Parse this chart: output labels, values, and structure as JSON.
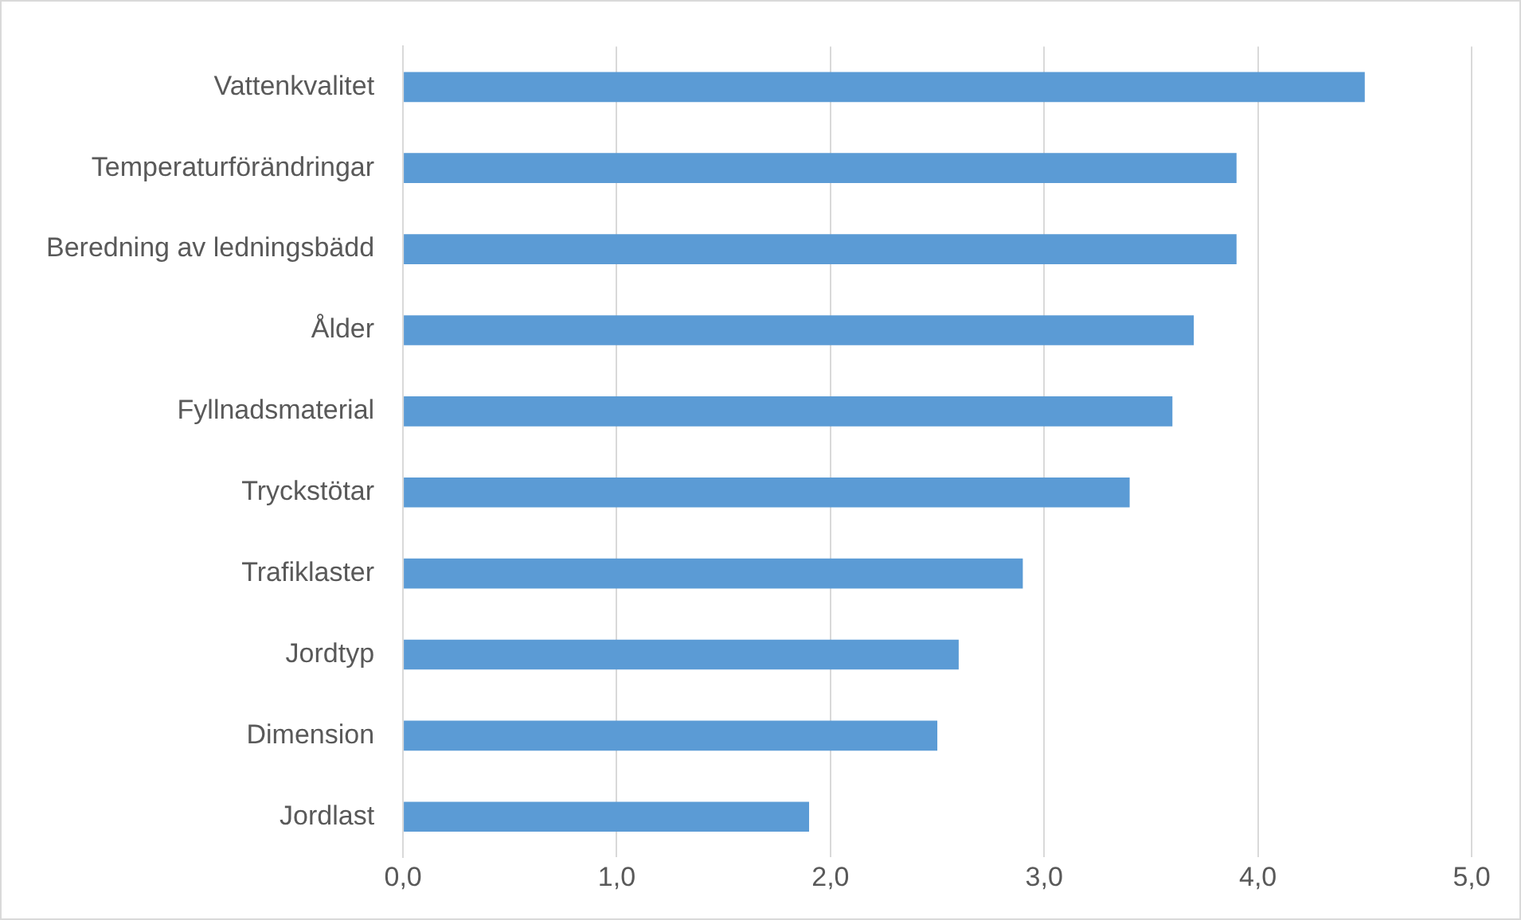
{
  "chart_data": {
    "type": "bar",
    "orientation": "horizontal",
    "categories": [
      "Vattenkvalitet",
      "Temperaturförändringar",
      "Beredning av ledningsbädd",
      "Ålder",
      "Fyllnadsmaterial",
      "Tryckstötar",
      "Trafiklaster",
      "Jordtyp",
      "Dimension",
      "Jordlast"
    ],
    "values": [
      4.5,
      3.9,
      3.9,
      3.7,
      3.6,
      3.4,
      2.9,
      2.6,
      2.5,
      1.9
    ],
    "color": "#5b9bd5",
    "xlim": [
      0,
      5
    ],
    "xticks": [
      {
        "value": 0,
        "label": "0,0"
      },
      {
        "value": 1,
        "label": "1,0"
      },
      {
        "value": 2,
        "label": "2,0"
      },
      {
        "value": 3,
        "label": "3,0"
      },
      {
        "value": 4,
        "label": "4,0"
      },
      {
        "value": 5,
        "label": "5,0"
      }
    ],
    "grid": "x"
  }
}
